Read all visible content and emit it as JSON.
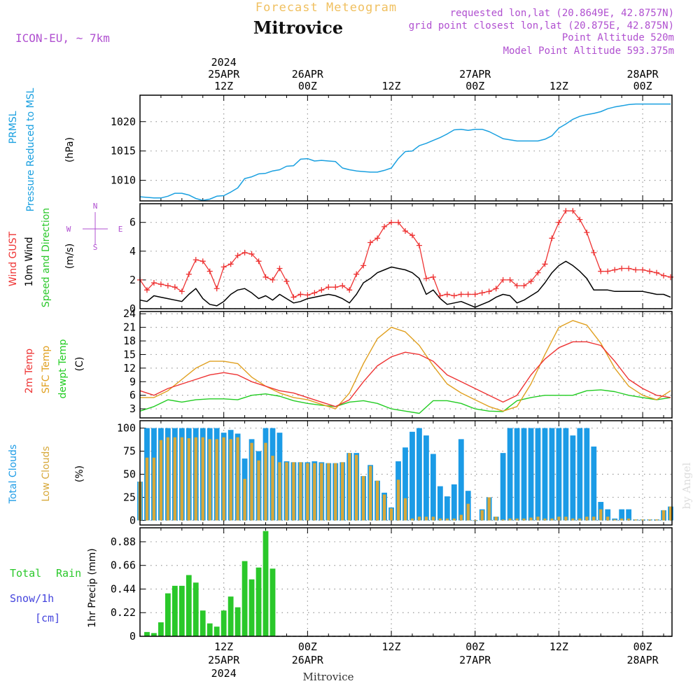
{
  "header": {
    "product": "Forecast Meteogram",
    "location": "Mitrovice",
    "model": "ICON-EU, ~ 7km",
    "requested": "requested lon,lat (20.8649E, 42.8757N)",
    "grid_point": "grid point closest lon,lat (20.875E, 42.875N)",
    "point_alt": "Point Altitude 520m",
    "model_alt": "Model Point Altitude 593.375m",
    "footer_location": "Mitrovice",
    "watermark": "by Angel"
  },
  "time_axis": {
    "top_labels": [
      {
        "h": 12,
        "lines": [
          "2024",
          "25APR",
          "12Z"
        ]
      },
      {
        "h": 24,
        "lines": [
          "26APR",
          "00Z"
        ]
      },
      {
        "h": 36,
        "lines": [
          "12Z"
        ]
      },
      {
        "h": 48,
        "lines": [
          "27APR",
          "00Z"
        ]
      },
      {
        "h": 60,
        "lines": [
          "12Z"
        ]
      },
      {
        "h": 72,
        "lines": [
          "28APR",
          "00Z"
        ]
      }
    ],
    "bottom_labels": [
      {
        "h": 12,
        "lines": [
          "12Z",
          "25APR",
          "2024"
        ]
      },
      {
        "h": 24,
        "lines": [
          "00Z",
          "26APR"
        ]
      },
      {
        "h": 36,
        "lines": [
          "12Z"
        ]
      },
      {
        "h": 48,
        "lines": [
          "00Z",
          "27APR"
        ]
      },
      {
        "h": 60,
        "lines": [
          "12Z"
        ]
      },
      {
        "h": 72,
        "lines": [
          "00Z",
          "28APR"
        ]
      }
    ]
  },
  "panel_labels": {
    "pressure": {
      "line1": "PRMSL",
      "line2": "Pressure Reduced to MSL",
      "unit": "(hPa)"
    },
    "wind": {
      "gust": "Wind GUST",
      "speed": "10m Wind",
      "dir": "Speed and Direction",
      "unit": "(m/s)",
      "compass_n": "N",
      "compass_s": "S",
      "compass_w": "W",
      "compass_e": "E"
    },
    "temp": {
      "t2m": "2m Temp",
      "sfc": "SFC Temp",
      "dew": "dewpt Temp",
      "unit": "(C)"
    },
    "clouds": {
      "total": "Total Clouds",
      "low": "Low Clouds",
      "unit": "(%)"
    },
    "precip": {
      "rain_a": "Total",
      "rain_b": "Rain",
      "snow": "Snow/1h",
      "snow_unit": "[cm]",
      "ylabel": "1hr Precip (mm)"
    }
  },
  "colors": {
    "pressure": "#1aa0e0",
    "gust": "#ee3333",
    "wind": "#000000",
    "t2m": "#ee3333",
    "sfc": "#e0a020",
    "dew": "#22cc22",
    "total_clouds": "#1b9be6",
    "low_clouds": "#d7a83a",
    "rain": "#2ac82a",
    "snow": "#4444dd",
    "header_gold": "#f0c060",
    "header_purple": "#b050d0",
    "grid": "#999999"
  },
  "chart_data": [
    {
      "type": "line",
      "title": "PRMSL",
      "ylabel": "hPa",
      "ylim": [
        1006.5,
        1024.5
      ],
      "yticks": [
        1010,
        1015,
        1020
      ],
      "x_unit": "hour since 2024-04-25 00Z",
      "x": [
        0,
        2,
        3,
        4,
        5,
        6,
        7,
        8,
        9,
        10,
        11,
        12,
        13,
        14,
        15,
        16,
        17,
        18,
        19,
        20,
        21,
        22,
        23,
        24,
        25,
        26,
        27,
        28,
        29,
        30,
        31,
        32,
        33,
        34,
        35,
        36,
        37,
        38,
        39,
        40,
        41,
        42,
        43,
        44,
        45,
        46,
        47,
        48,
        49,
        50,
        51,
        52,
        53,
        54,
        55,
        56,
        57,
        58,
        59,
        60,
        61,
        62,
        63,
        64,
        65,
        66,
        67,
        68,
        69,
        70,
        71,
        72,
        73,
        74,
        75,
        76
      ],
      "series": [
        {
          "name": "PRMSL",
          "values": [
            1007.2,
            1007.0,
            1007.0,
            1007.3,
            1007.8,
            1007.8,
            1007.5,
            1006.9,
            1006.6,
            1006.8,
            1007.3,
            1007.4,
            1008.0,
            1008.7,
            1010.3,
            1010.6,
            1011.1,
            1011.2,
            1011.6,
            1011.8,
            1012.4,
            1012.5,
            1013.6,
            1013.7,
            1013.3,
            1013.4,
            1013.3,
            1013.2,
            1012.1,
            1011.8,
            1011.6,
            1011.5,
            1011.4,
            1011.4,
            1011.7,
            1012.1,
            1013.7,
            1014.9,
            1015.0,
            1015.9,
            1016.3,
            1016.8,
            1017.3,
            1017.9,
            1018.6,
            1018.7,
            1018.5,
            1018.7,
            1018.7,
            1018.3,
            1017.7,
            1017.1,
            1016.9,
            1016.7,
            1016.7,
            1016.7,
            1016.7,
            1017.0,
            1017.6,
            1018.9,
            1019.6,
            1020.4,
            1020.9,
            1021.2,
            1021.4,
            1021.7,
            1022.2,
            1022.5,
            1022.7,
            1022.9,
            1023.0,
            1023.0,
            1023.0,
            1023.0,
            1023.0,
            1023.0
          ]
        }
      ]
    },
    {
      "type": "line",
      "title": "Wind",
      "ylabel": "m/s",
      "ylim": [
        0,
        7.3
      ],
      "yticks": [
        0,
        2,
        4,
        6
      ],
      "x_unit": "hour since 2024-04-25 00Z",
      "x": [
        0,
        1,
        2,
        3,
        4,
        5,
        6,
        7,
        8,
        9,
        10,
        11,
        12,
        13,
        14,
        15,
        16,
        17,
        18,
        19,
        20,
        21,
        22,
        23,
        24,
        25,
        26,
        27,
        28,
        29,
        30,
        31,
        32,
        33,
        34,
        35,
        36,
        37,
        38,
        39,
        40,
        41,
        42,
        43,
        44,
        45,
        46,
        47,
        48,
        49,
        50,
        51,
        52,
        53,
        54,
        55,
        56,
        57,
        58,
        59,
        60,
        61,
        62,
        63,
        64,
        65,
        66,
        67,
        68,
        69,
        70,
        71,
        72,
        73,
        74,
        75,
        76
      ],
      "series": [
        {
          "name": "Wind GUST",
          "values": [
            2.0,
            1.3,
            1.8,
            1.7,
            1.6,
            1.5,
            1.2,
            2.4,
            3.4,
            3.3,
            2.6,
            1.4,
            2.9,
            3.1,
            3.7,
            3.9,
            3.8,
            3.3,
            2.2,
            2.0,
            2.8,
            1.9,
            0.8,
            1.0,
            0.95,
            1.1,
            1.3,
            1.5,
            1.5,
            1.6,
            1.3,
            2.4,
            3.0,
            4.6,
            4.9,
            5.7,
            6.0,
            6.0,
            5.4,
            5.1,
            4.4,
            2.1,
            2.2,
            0.9,
            1.0,
            0.9,
            1.0,
            1.0,
            1.0,
            1.1,
            1.2,
            1.4,
            2.0,
            2.0,
            1.6,
            1.6,
            1.9,
            2.5,
            3.1,
            4.9,
            6.0,
            6.8,
            6.8,
            6.2,
            5.3,
            3.9,
            2.6,
            2.6,
            2.7,
            2.8,
            2.8,
            2.7,
            2.7,
            2.6,
            2.5,
            2.3,
            2.2
          ]
        },
        {
          "name": "10m Wind",
          "values": [
            0.6,
            0.5,
            0.9,
            0.8,
            0.7,
            0.6,
            0.5,
            1.0,
            1.4,
            0.7,
            0.3,
            0.2,
            0.5,
            1.0,
            1.3,
            1.4,
            1.1,
            0.7,
            0.9,
            0.6,
            1.0,
            0.7,
            0.4,
            0.5,
            0.7,
            0.8,
            0.9,
            1.0,
            0.9,
            0.7,
            0.4,
            1.0,
            1.8,
            2.1,
            2.5,
            2.7,
            2.9,
            2.8,
            2.7,
            2.5,
            2.1,
            1.0,
            1.3,
            0.7,
            0.3,
            0.4,
            0.5,
            0.3,
            0.1,
            0.3,
            0.5,
            0.8,
            1.0,
            0.9,
            0.4,
            0.6,
            0.9,
            1.2,
            1.8,
            2.5,
            3.0,
            3.3,
            3.0,
            2.6,
            2.1,
            1.3,
            1.3,
            1.3,
            1.2,
            1.2,
            1.2,
            1.2,
            1.2,
            1.1,
            1.0,
            1.0,
            0.8
          ]
        }
      ]
    },
    {
      "type": "line",
      "title": "Temperature",
      "ylabel": "C",
      "ylim": [
        1,
        24.5
      ],
      "yticks": [
        3,
        6,
        9,
        12,
        15,
        18,
        21,
        24
      ],
      "x_unit": "hour since 2024-04-25 00Z",
      "x": [
        0,
        2,
        4,
        6,
        8,
        10,
        12,
        14,
        16,
        18,
        20,
        22,
        24,
        26,
        28,
        30,
        32,
        34,
        36,
        38,
        40,
        42,
        44,
        46,
        48,
        50,
        52,
        54,
        56,
        58,
        60,
        62,
        64,
        66,
        68,
        70,
        72,
        74,
        76
      ],
      "series": [
        {
          "name": "2m Temp",
          "values": [
            7.0,
            6.0,
            7.5,
            8.5,
            9.5,
            10.5,
            11.0,
            10.5,
            9.0,
            8.0,
            7.0,
            6.5,
            5.5,
            4.5,
            3.5,
            5.0,
            9.0,
            12.5,
            14.5,
            15.5,
            15.0,
            13.5,
            10.5,
            9.0,
            7.5,
            6.0,
            4.5,
            6.0,
            10.5,
            14.0,
            16.5,
            17.8,
            17.8,
            17.0,
            13.5,
            9.5,
            7.5,
            6.0,
            5.5
          ]
        },
        {
          "name": "SFC Temp",
          "values": [
            5.5,
            5.5,
            7.0,
            9.5,
            12.0,
            13.5,
            13.5,
            13.0,
            10.0,
            8.0,
            6.5,
            5.5,
            5.0,
            4.0,
            3.0,
            6.5,
            13.0,
            18.5,
            21.0,
            20.0,
            17.0,
            12.5,
            8.5,
            6.5,
            5.0,
            3.5,
            2.5,
            3.5,
            8.5,
            15.0,
            21.0,
            22.5,
            21.5,
            17.5,
            12.0,
            8.0,
            6.0,
            5.0,
            7.0
          ]
        },
        {
          "name": "dewpt Temp",
          "values": [
            2.5,
            3.5,
            5.0,
            4.5,
            5.0,
            5.2,
            5.2,
            5.0,
            6.0,
            6.3,
            5.8,
            4.8,
            4.2,
            3.8,
            3.5,
            4.5,
            4.8,
            4.2,
            3.0,
            2.5,
            2.0,
            4.8,
            4.8,
            4.2,
            3.0,
            2.5,
            2.4,
            4.8,
            5.5,
            6.0,
            6.0,
            6.0,
            7.0,
            7.2,
            6.8,
            6.0,
            5.5,
            5.0,
            5.5
          ]
        }
      ]
    },
    {
      "type": "bar",
      "title": "Clouds",
      "ylabel": "%",
      "ylim": [
        -5,
        108
      ],
      "yticks": [
        0,
        25,
        50,
        75,
        100
      ],
      "x_unit": "hour since 2024-04-25 00Z",
      "x": [
        0,
        1,
        2,
        3,
        4,
        5,
        6,
        7,
        8,
        9,
        10,
        11,
        12,
        13,
        14,
        15,
        16,
        17,
        18,
        19,
        20,
        21,
        22,
        23,
        24,
        25,
        26,
        27,
        28,
        29,
        30,
        31,
        32,
        33,
        34,
        35,
        36,
        37,
        38,
        39,
        40,
        41,
        42,
        43,
        44,
        45,
        46,
        47,
        48,
        49,
        50,
        51,
        52,
        53,
        54,
        55,
        56,
        57,
        58,
        59,
        60,
        61,
        62,
        63,
        64,
        65,
        66,
        67,
        68,
        69,
        70,
        71,
        72,
        73,
        74,
        75,
        76
      ],
      "series": [
        {
          "name": "Total Clouds",
          "values": [
            42,
            100,
            100,
            100,
            100,
            100,
            100,
            100,
            100,
            100,
            100,
            100,
            95,
            98,
            94,
            67,
            88,
            75,
            100,
            100,
            95,
            64,
            63,
            63,
            63,
            64,
            63,
            62,
            62,
            63,
            73,
            73,
            48,
            60,
            43,
            30,
            14,
            64,
            79,
            96,
            100,
            92,
            72,
            37,
            26,
            39,
            88,
            32,
            0,
            12,
            25,
            4,
            73,
            100,
            100,
            100,
            100,
            100,
            100,
            100,
            100,
            100,
            92,
            100,
            100,
            80,
            20,
            12,
            2,
            12,
            12,
            1,
            1,
            1,
            1,
            11,
            15
          ]
        },
        {
          "name": "Low Clouds",
          "values": [
            42,
            68,
            68,
            87,
            90,
            90,
            90,
            89,
            90,
            90,
            88,
            88,
            90,
            88,
            90,
            45,
            84,
            65,
            84,
            70,
            63,
            63,
            63,
            63,
            62,
            62,
            62,
            62,
            62,
            63,
            73,
            71,
            48,
            59,
            43,
            28,
            13,
            44,
            24,
            2,
            4,
            4,
            4,
            2,
            2,
            2,
            6,
            18,
            0,
            11,
            25,
            4,
            1,
            2,
            2,
            2,
            3,
            4,
            2,
            2,
            4,
            4,
            2,
            2,
            4,
            4,
            12,
            4,
            1,
            2,
            2,
            1,
            1,
            1,
            1,
            11,
            15
          ]
        }
      ]
    },
    {
      "type": "bar",
      "title": "1hr Precip",
      "ylabel": "1hr Precip (mm)",
      "ylim": [
        0,
        1.01
      ],
      "yticks": [
        0,
        0.22,
        0.44,
        0.66,
        0.88
      ],
      "x_unit": "hour since 2024-04-25 00Z",
      "x": [
        1,
        2,
        3,
        4,
        5,
        6,
        7,
        8,
        9,
        10,
        11,
        12,
        13,
        14,
        15,
        16,
        17,
        18,
        19
      ],
      "series": [
        {
          "name": "Total Rain",
          "values": [
            0.04,
            0.03,
            0.13,
            0.4,
            0.47,
            0.47,
            0.57,
            0.5,
            0.24,
            0.12,
            0.09,
            0.24,
            0.37,
            0.27,
            0.7,
            0.53,
            0.64,
            0.98,
            0.63
          ]
        }
      ]
    }
  ]
}
